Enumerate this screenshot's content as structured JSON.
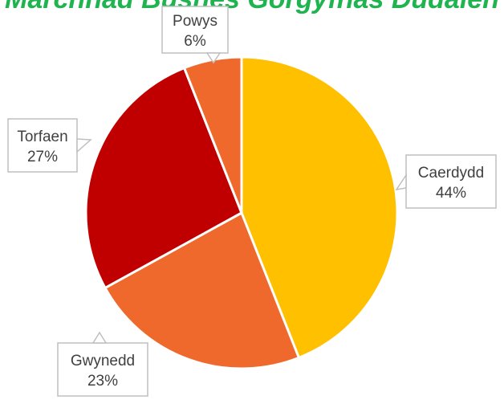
{
  "chart_data": {
    "type": "pie",
    "title": "Marchnad Busnes Gorgyfnas Dudalen",
    "title_color": "#1fb44f",
    "slices": [
      {
        "label": "Caerdydd",
        "value": 44,
        "pct_label": "44%",
        "color": "#FFC000"
      },
      {
        "label": "Gwynedd",
        "value": 23,
        "pct_label": "23%",
        "color": "#F0692C"
      },
      {
        "label": "Torfaen",
        "value": 27,
        "pct_label": "27%",
        "color": "#C00000"
      },
      {
        "label": "Powys",
        "value": 6,
        "pct_label": "6%",
        "color": "#F0692C"
      }
    ],
    "label_style": "callout boxes outside the pie",
    "start_angle": "12 o'clock",
    "direction": "clockwise",
    "legend": "none"
  }
}
